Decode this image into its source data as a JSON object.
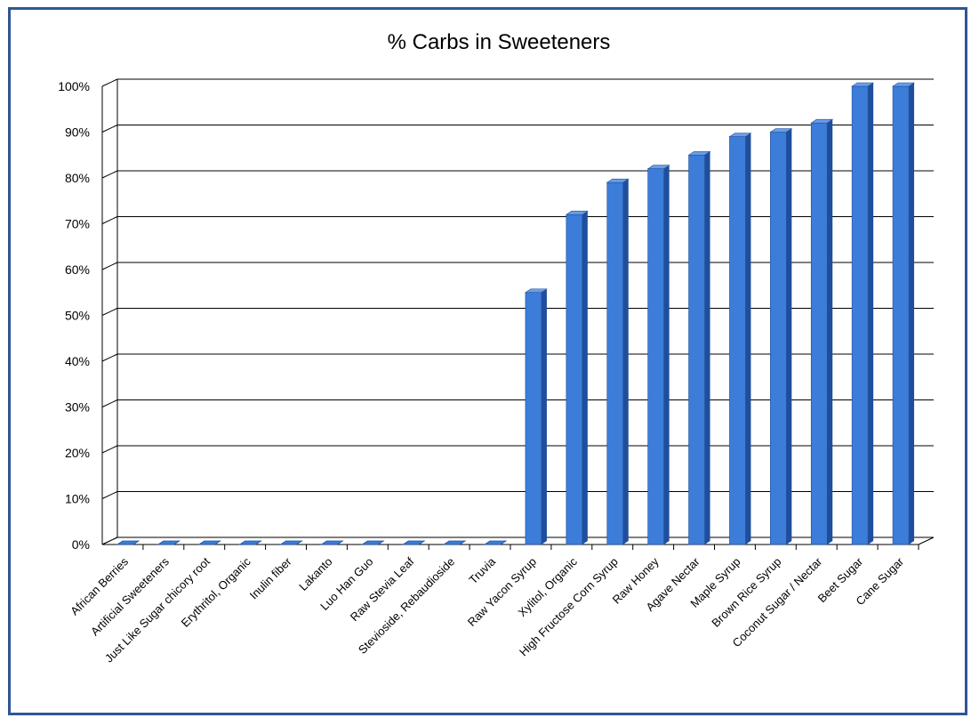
{
  "chart_data": {
    "type": "bar",
    "title": "% Carbs in Sweeteners",
    "xlabel": "",
    "ylabel": "",
    "ylim": [
      0,
      100
    ],
    "yticks": [
      "0%",
      "10%",
      "20%",
      "30%",
      "40%",
      "50%",
      "60%",
      "70%",
      "80%",
      "90%",
      "100%"
    ],
    "grid": true,
    "legend": "none",
    "bar_color": "#3b7dd8",
    "categories": [
      "African Berries",
      "Artificial Sweeteners",
      "Just Like Sugar chicory root",
      "Erythritol, Organic",
      "Inulin fiber",
      "Lakanto",
      "Luo Han Guo",
      "Raw Stevia Leaf",
      "Stevioside, Rebaudioside",
      "Truvia",
      "Raw Yacon Syrup",
      "Xylitol, Organic",
      "High Fructose Corn Syrup",
      "Raw Honey",
      "Agave Nectar",
      "Maple Syrup",
      "Brown Rice Syrup",
      "Coconut Sugar / Nectar",
      "Beet Sugar",
      "Cane Sugar"
    ],
    "values": [
      0,
      0,
      0,
      0,
      0,
      0,
      0,
      0,
      0,
      0,
      55,
      72,
      79,
      82,
      85,
      89,
      90,
      92,
      100,
      100
    ]
  }
}
